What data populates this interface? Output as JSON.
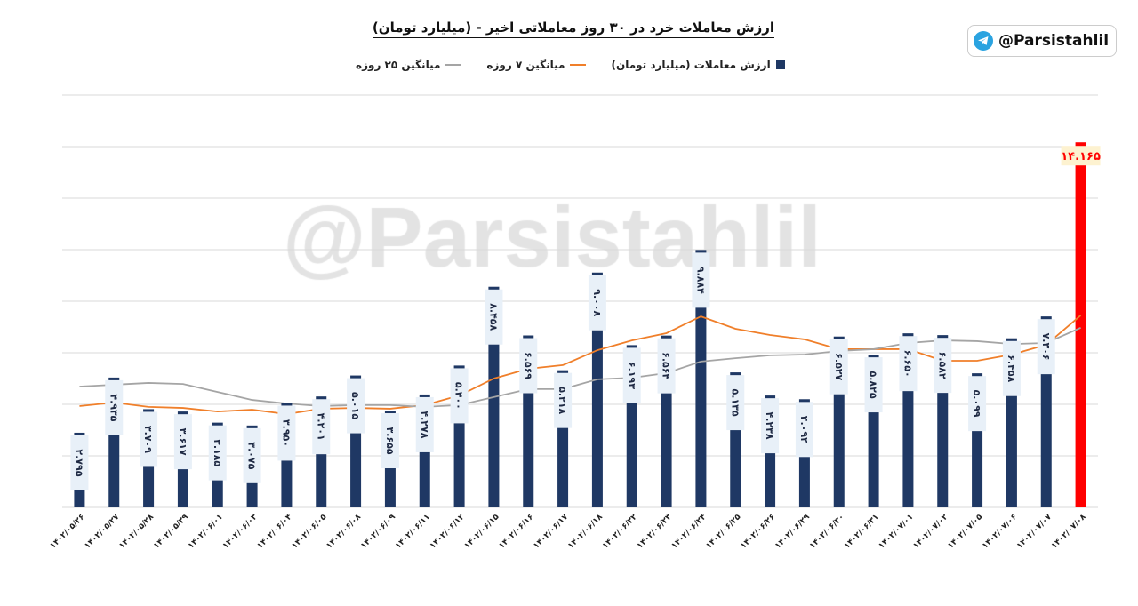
{
  "badge": {
    "handle": "@Parsistahlil",
    "icon": "telegram-icon"
  },
  "watermark": "@Parsistahlil",
  "chart_data": {
    "type": "bar",
    "title": "ارزش معاملات خرد در ۳۰ روز معاملاتی اخیر - (میلیارد تومان)",
    "xlabel": "",
    "ylabel": "",
    "ylim": [
      0,
      16
    ],
    "grid": true,
    "legend_position": "top",
    "categories": [
      "۱۴۰۲/۰۵/۲۶",
      "۱۴۰۲/۰۵/۲۷",
      "۱۴۰۲/۰۵/۲۸",
      "۱۴۰۲/۰۵/۲۹",
      "۱۴۰۲/۰۶/۰۱",
      "۱۴۰۲/۰۶/۰۳",
      "۱۴۰۲/۰۶/۰۴",
      "۱۴۰۲/۰۶/۰۵",
      "۱۴۰۲/۰۶/۰۸",
      "۱۴۰۲/۰۶/۰۹",
      "۱۴۰۲/۰۶/۱۱",
      "۱۴۰۲/۰۶/۱۲",
      "۱۴۰۲/۰۶/۱۵",
      "۱۴۰۲/۰۶/۱۶",
      "۱۴۰۲/۰۶/۱۷",
      "۱۴۰۲/۰۶/۱۸",
      "۱۴۰۲/۰۶/۲۲",
      "۱۴۰۲/۰۶/۲۳",
      "۱۴۰۲/۰۶/۲۴",
      "۱۴۰۲/۰۶/۲۵",
      "۱۴۰۲/۰۶/۲۶",
      "۱۴۰۲/۰۶/۲۹",
      "۱۴۰۲/۰۶/۳۰",
      "۱۴۰۲/۰۶/۳۱",
      "۱۴۰۲/۰۷/۰۱",
      "۱۴۰۲/۰۷/۰۲",
      "۱۴۰۲/۰۷/۰۵",
      "۱۴۰۲/۰۷/۰۶",
      "۱۴۰۲/۰۷/۰۷",
      "۱۴۰۲/۰۷/۰۸"
    ],
    "series": [
      {
        "name": "ارزش معاملات (میلیارد تومان)",
        "type": "bar",
        "color": "#1f3864",
        "highlight_color": "#ff0000",
        "values": [
          2.795,
          4.935,
          3.709,
          3.617,
          3.185,
          3.075,
          3.95,
          4.201,
          5.015,
          3.655,
          4.278,
          5.4,
          8.458,
          6.569,
          5.218,
          9.008,
          6.193,
          6.564,
          9.884,
          5.135,
          4.238,
          4.094,
          6.527,
          5.825,
          6.65,
          6.582,
          5.099,
          6.458,
          7.306,
          14.165
        ],
        "labels": [
          "۲.۷۹۵",
          "۴.۹۳۵",
          "۳.۷۰۹",
          "۳.۶۱۷",
          "۳.۱۸۵",
          "۳.۰۷۵",
          "۳.۹۵۰",
          "۴.۲۰۱",
          "۵.۰۱۵",
          "۳.۶۵۵",
          "۴.۲۷۸",
          "۵.۴۰۰",
          "۸.۴۵۸",
          "۶.۵۶۹",
          "۵.۲۱۸",
          "۹.۰۰۸",
          "۶.۱۹۳",
          "۶.۵۶۴",
          "۹.۸۸۴",
          "۵.۱۳۵",
          "۴.۲۳۸",
          "۴.۰۹۴",
          "۶.۵۲۷",
          "۵.۸۲۵",
          "۶.۶۵۰",
          "۶.۵۸۲",
          "۵.۰۹۹",
          "۶.۴۵۸",
          "۷.۳۰۶",
          "۱۴.۱۶۵"
        ]
      },
      {
        "name": "میانگین ۷ روزه",
        "type": "line",
        "color": "#f07f2a",
        "values": [
          3.93,
          4.07,
          3.9,
          3.86,
          3.72,
          3.79,
          3.62,
          3.83,
          3.86,
          3.83,
          3.97,
          4.34,
          5.0,
          5.38,
          5.52,
          6.1,
          6.48,
          6.76,
          7.41,
          6.93,
          6.69,
          6.52,
          6.14,
          6.14,
          6.14,
          5.69,
          5.69,
          5.93,
          6.31,
          7.45
        ]
      },
      {
        "name": "میانگین ۲۵ روزه",
        "type": "line",
        "color": "#a5a5a5",
        "values": [
          4.69,
          4.76,
          4.83,
          4.79,
          4.48,
          4.17,
          4.03,
          3.93,
          3.97,
          3.97,
          3.9,
          3.97,
          4.28,
          4.59,
          4.59,
          4.97,
          5.03,
          5.21,
          5.66,
          5.79,
          5.9,
          5.93,
          6.07,
          6.14,
          6.38,
          6.48,
          6.45,
          6.34,
          6.38,
          6.97
        ]
      }
    ]
  }
}
